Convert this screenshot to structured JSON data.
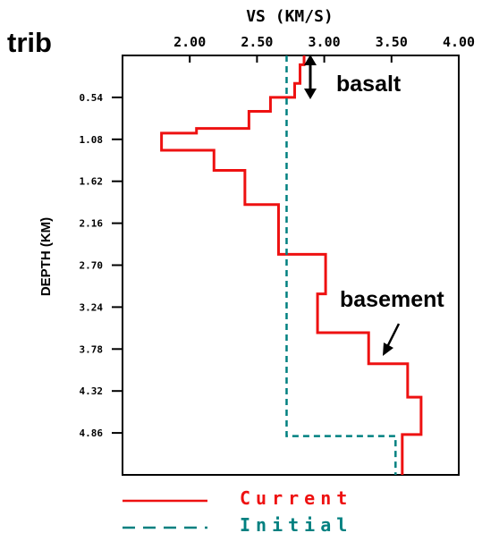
{
  "chart_data": {
    "type": "line",
    "panel_label": "trib",
    "xlabel": "VS (KM/S)",
    "ylabel": "DEPTH (KM)",
    "xlim": [
      1.5,
      4.0
    ],
    "ylim": [
      5.4,
      0.0
    ],
    "x_ticks": [
      "2.00",
      "2.50",
      "3.00",
      "3.50",
      "4.00"
    ],
    "y_ticks": [
      "0.54",
      "1.08",
      "1.62",
      "2.16",
      "2.70",
      "3.24",
      "3.78",
      "4.32",
      "4.86"
    ],
    "grid": false,
    "legend_position": "bottom",
    "series": [
      {
        "name": "Current",
        "color": "#ee1111",
        "style": "solid",
        "steps": [
          {
            "vs": 2.85,
            "top": 0.0,
            "bottom": 0.12
          },
          {
            "vs": 2.82,
            "top": 0.12,
            "bottom": 0.36
          },
          {
            "vs": 2.78,
            "top": 0.36,
            "bottom": 0.54
          },
          {
            "vs": 2.6,
            "top": 0.54,
            "bottom": 0.72
          },
          {
            "vs": 2.44,
            "top": 0.72,
            "bottom": 0.94
          },
          {
            "vs": 2.05,
            "top": 0.94,
            "bottom": 1.0
          },
          {
            "vs": 1.79,
            "top": 1.0,
            "bottom": 1.22
          },
          {
            "vs": 2.18,
            "top": 1.22,
            "bottom": 1.48
          },
          {
            "vs": 2.41,
            "top": 1.48,
            "bottom": 1.92
          },
          {
            "vs": 2.66,
            "top": 1.92,
            "bottom": 2.56
          },
          {
            "vs": 3.01,
            "top": 2.56,
            "bottom": 3.07
          },
          {
            "vs": 2.95,
            "top": 3.07,
            "bottom": 3.57
          },
          {
            "vs": 3.33,
            "top": 3.57,
            "bottom": 3.97
          },
          {
            "vs": 3.62,
            "top": 3.97,
            "bottom": 4.4
          },
          {
            "vs": 3.72,
            "top": 4.4,
            "bottom": 4.88
          },
          {
            "vs": 3.58,
            "top": 4.88,
            "bottom": 5.4
          }
        ]
      },
      {
        "name": "Initial",
        "color": "#008080",
        "style": "dashed",
        "steps": [
          {
            "vs": 2.72,
            "top": 0.0,
            "bottom": 4.9
          },
          {
            "vs": 3.53,
            "top": 4.9,
            "bottom": 5.4
          }
        ]
      }
    ],
    "annotations": [
      {
        "text": "basalt",
        "arrow": "double-headed vertical",
        "depth_range": [
          0.0,
          0.55
        ],
        "vs": 2.95
      },
      {
        "text": "basement",
        "arrow": "pointing down-left",
        "points_to": {
          "vs": 3.33,
          "depth": 3.95
        }
      }
    ]
  },
  "legend": [
    {
      "label": "Current",
      "color": "#ee1111",
      "style": "solid"
    },
    {
      "label": "Initial",
      "color": "#008080",
      "style": "dashed"
    }
  ]
}
